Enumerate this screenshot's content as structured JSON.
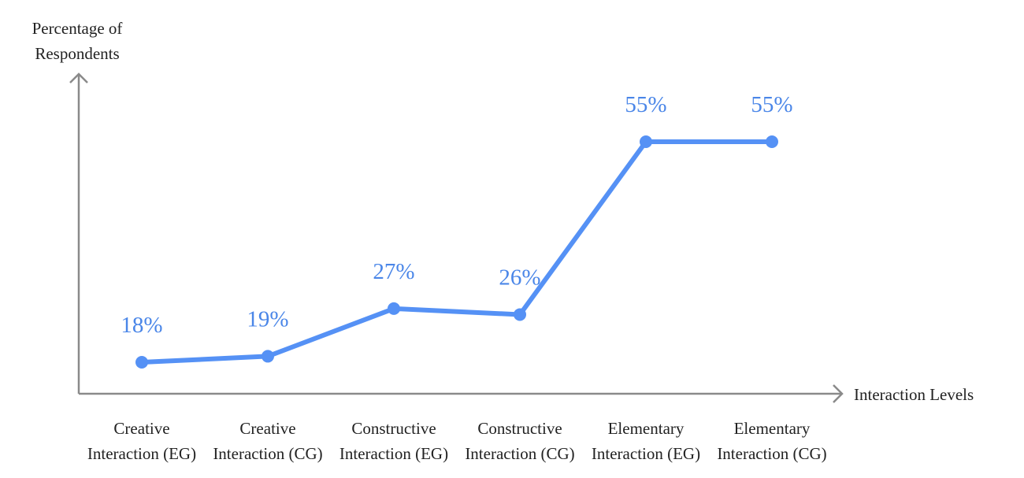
{
  "chart_data": {
    "type": "line",
    "title": "",
    "ylabel": [
      "Percentage of",
      "Respondents"
    ],
    "xlabel": "Interaction Levels",
    "categories": [
      [
        "Creative",
        "Interaction (EG)"
      ],
      [
        "Creative",
        "Interaction (CG)"
      ],
      [
        "Constructive",
        "Interaction (EG)"
      ],
      [
        "Constructive",
        "Interaction (CG)"
      ],
      [
        "Elementary",
        "Interaction (EG)"
      ],
      [
        "Elementary",
        "Interaction (CG)"
      ]
    ],
    "series": [
      {
        "values": [
          18,
          19,
          27,
          26,
          55,
          55
        ],
        "labels": [
          "18%",
          "19%",
          "27%",
          "26%",
          "55%",
          "55%"
        ]
      }
    ],
    "ylim": [
      14,
      58
    ],
    "grid": false,
    "legend": "none",
    "colors": {
      "series": "#5591f5",
      "labels": "#4a86e8",
      "axis": "#8a8a8a"
    }
  }
}
